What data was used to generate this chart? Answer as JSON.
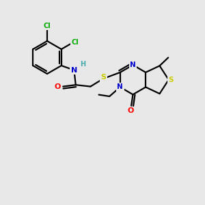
{
  "background_color": "#e8e8e8",
  "atom_colors": {
    "C": "#000000",
    "N": "#0000cc",
    "O": "#ff0000",
    "S": "#cccc00",
    "Cl": "#00aa00",
    "H": "#44aaaa"
  },
  "bond_color": "#000000",
  "bond_width": 1.6,
  "figsize": [
    3.0,
    3.0
  ],
  "dpi": 100
}
